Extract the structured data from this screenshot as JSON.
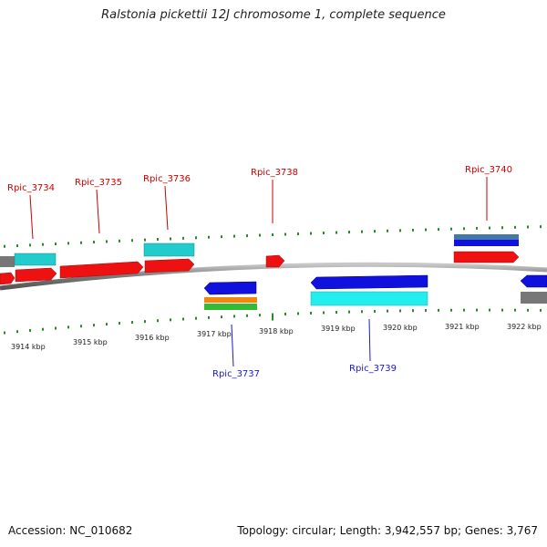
{
  "title": "Ralstonia pickettii 12J chromosome 1, complete sequence",
  "footer": {
    "accession": "Accession: NC_010682",
    "summary": "Topology: circular; Length: 3,942,557 bp; Genes: 3,767"
  },
  "colors": {
    "forward_label": "#cc0000",
    "reverse_label": "#1a1acc",
    "tick": "#2a8a2a",
    "backbone": "#8a8a8a",
    "red": "#ee1111",
    "cyan": "#22cccc",
    "blue": "#1111dd",
    "grey": "#777777",
    "orange": "#ee8811",
    "green": "#33bb33",
    "steel": "#4477aa"
  },
  "ruler_labels": [
    "3914 kbp",
    "3915 kbp",
    "3916 kbp",
    "3917 kbp",
    "3918 kbp",
    "3919 kbp",
    "3920 kbp",
    "3921 kbp",
    "3922 kbp"
  ],
  "gene_labels": [
    {
      "text": "Rpic_3734",
      "strand": "forward"
    },
    {
      "text": "Rpic_3735",
      "strand": "forward"
    },
    {
      "text": "Rpic_3736",
      "strand": "forward"
    },
    {
      "text": "Rpic_3738",
      "strand": "forward"
    },
    {
      "text": "Rpic_3740",
      "strand": "forward"
    },
    {
      "text": "Rpic_3737",
      "strand": "reverse"
    },
    {
      "text": "Rpic_3739",
      "strand": "reverse"
    }
  ]
}
